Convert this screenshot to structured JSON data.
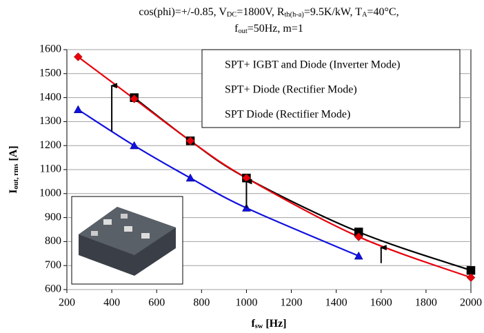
{
  "chart_data": {
    "type": "line",
    "title_lines": [
      [
        "cos(phi)=+/-0.85, V",
        "DC",
        "=1800V, R",
        "th(h-a)",
        "=9.5K/kW, T",
        "A",
        "=40°C,"
      ],
      [
        "f",
        "out",
        "=50Hz, m=1"
      ]
    ],
    "xlabel": [
      "f",
      "sw",
      " [Hz]"
    ],
    "ylabel": [
      "I",
      "out, rms",
      " [A]"
    ],
    "xlim": [
      200,
      2000
    ],
    "xticks": [
      200,
      400,
      600,
      800,
      1000,
      1200,
      1400,
      1600,
      1800,
      2000
    ],
    "ylim": [
      600,
      1600
    ],
    "yticks": [
      600,
      700,
      800,
      900,
      1000,
      1100,
      1200,
      1300,
      1400,
      1500,
      1600
    ],
    "grid": true,
    "legend": "upper right",
    "series": [
      {
        "name": "SPT+ IGBT and Diode (Inverter Mode)",
        "color": "#000000",
        "marker": "square",
        "x": [
          500,
          750,
          1000,
          1500,
          2000
        ],
        "values": [
          1400,
          1220,
          1065,
          840,
          680
        ]
      },
      {
        "name": "SPT+ Diode (Rectifier Mode)",
        "color": "#e8000b",
        "marker": "diamond",
        "x": [
          250,
          500,
          750,
          1000,
          1500,
          2000
        ],
        "values": [
          1570,
          1395,
          1220,
          1065,
          820,
          650
        ]
      },
      {
        "name": "SPT Diode (Rectifier Mode)",
        "color": "#1010e0",
        "marker": "triangle",
        "x": [
          250,
          500,
          750,
          1000,
          1500
        ],
        "values": [
          1350,
          1200,
          1065,
          940,
          740
        ]
      }
    ],
    "arrows": [
      {
        "x": 400,
        "from": 1260,
        "to": 1450
      },
      {
        "x": 1000,
        "from": 940,
        "to": 1050
      },
      {
        "x": 1600,
        "from": 710,
        "to": 775
      }
    ]
  }
}
